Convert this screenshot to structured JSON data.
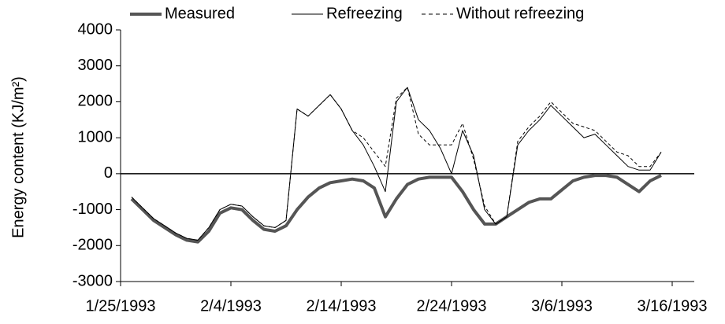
{
  "chart_data": {
    "type": "line",
    "ylabel": "Energy content (KJ/m²)",
    "x": [
      "1/26/1993",
      "1/27/1993",
      "1/28/1993",
      "1/29/1993",
      "1/30/1993",
      "1/31/1993",
      "2/1/1993",
      "2/2/1993",
      "2/3/1993",
      "2/4/1993",
      "2/5/1993",
      "2/6/1993",
      "2/7/1993",
      "2/8/1993",
      "2/9/1993",
      "2/10/1993",
      "2/11/1993",
      "2/12/1993",
      "2/13/1993",
      "2/14/1993",
      "2/15/1993",
      "2/16/1993",
      "2/17/1993",
      "2/18/1993",
      "2/19/1993",
      "2/20/1993",
      "2/21/1993",
      "2/22/1993",
      "2/23/1993",
      "2/24/1993",
      "2/25/1993",
      "2/26/1993",
      "2/27/1993",
      "2/28/1993",
      "3/1/1993",
      "3/2/1993",
      "3/3/1993",
      "3/4/1993",
      "3/5/1993",
      "3/6/1993",
      "3/7/1993",
      "3/8/1993",
      "3/9/1993",
      "3/10/1993",
      "3/11/1993",
      "3/12/1993",
      "3/13/1993",
      "3/14/1993",
      "3/15/1993"
    ],
    "series": [
      {
        "name": "Measured",
        "color": "#555555",
        "width": 4,
        "dash": false,
        "values": [
          -700,
          -1000,
          -1300,
          -1500,
          -1700,
          -1850,
          -1900,
          -1600,
          -1100,
          -950,
          -1000,
          -1300,
          -1550,
          -1600,
          -1450,
          -1000,
          -650,
          -400,
          -250,
          -200,
          -150,
          -200,
          -400,
          -1200,
          -700,
          -300,
          -150,
          -100,
          -100,
          -100,
          -500,
          -1000,
          -1400,
          -1400,
          -1200,
          -1000,
          -800,
          -700,
          -700,
          -450,
          -200,
          -100,
          -50,
          -50,
          -100,
          -300,
          -500,
          -200,
          -50
        ]
      },
      {
        "name": "Refreezing",
        "color": "#000000",
        "width": 1,
        "dash": false,
        "values": [
          -650,
          -950,
          -1250,
          -1450,
          -1650,
          -1800,
          -1850,
          -1500,
          -1000,
          -850,
          -900,
          -1200,
          -1450,
          -1500,
          -1300,
          1800,
          1600,
          1900,
          2200,
          1800,
          1200,
          800,
          200,
          -500,
          2000,
          2400,
          1500,
          1200,
          700,
          0,
          1200,
          500,
          -1000,
          -1400,
          -1200,
          800,
          1200,
          1500,
          1900,
          1600,
          1300,
          1000,
          1100,
          800,
          500,
          200,
          100,
          100,
          600
        ]
      },
      {
        "name": "Without refreezing",
        "color": "#000000",
        "width": 1,
        "dash": true,
        "values": [
          -650,
          -950,
          -1250,
          -1450,
          -1650,
          -1800,
          -1850,
          -1500,
          -1000,
          -850,
          -900,
          -1200,
          -1450,
          -1500,
          -1300,
          1800,
          1600,
          1900,
          2200,
          1800,
          1200,
          1000,
          600,
          200,
          2100,
          2400,
          1100,
          800,
          800,
          800,
          1400,
          400,
          -900,
          -1400,
          -1200,
          900,
          1300,
          1600,
          2000,
          1700,
          1400,
          1300,
          1200,
          900,
          600,
          500,
          200,
          200,
          600
        ]
      }
    ],
    "xlim": [
      "1/25/1993",
      "3/18/1993"
    ],
    "xticks": [
      "1/25/1993",
      "2/4/1993",
      "2/14/1993",
      "2/24/1993",
      "3/6/1993",
      "3/16/1993"
    ],
    "ylim": [
      -3000,
      4000
    ],
    "yticks": [
      -3000,
      -2000,
      -1000,
      0,
      1000,
      2000,
      3000,
      4000
    ],
    "legend": "top"
  }
}
